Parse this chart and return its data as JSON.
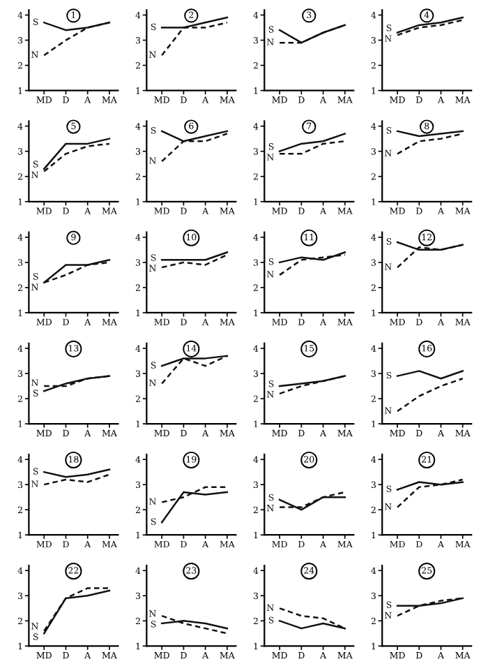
{
  "chart_data": [
    {
      "type": "line",
      "title": "1",
      "categories": [
        "MD",
        "D",
        "A",
        "MA"
      ],
      "ylim": [
        1,
        4.2
      ],
      "yticks": [
        1,
        2,
        3,
        4
      ],
      "series": [
        {
          "name": "S",
          "color": "#111111",
          "line_style": "solid",
          "values": [
            3.7,
            3.4,
            3.5,
            3.7
          ]
        },
        {
          "name": "N",
          "color": "#111111",
          "line_style": "dashed",
          "values": [
            2.4,
            3.0,
            3.5,
            3.7
          ]
        }
      ]
    },
    {
      "type": "line",
      "title": "2",
      "categories": [
        "MD",
        "D",
        "A",
        "MA"
      ],
      "ylim": [
        1,
        4.2
      ],
      "yticks": [
        1,
        2,
        3,
        4
      ],
      "series": [
        {
          "name": "S",
          "color": "#111111",
          "line_style": "solid",
          "values": [
            3.5,
            3.5,
            3.7,
            3.9
          ]
        },
        {
          "name": "N",
          "color": "#111111",
          "line_style": "dashed",
          "values": [
            2.4,
            3.5,
            3.5,
            3.7
          ]
        }
      ]
    },
    {
      "type": "line",
      "title": "3",
      "categories": [
        "MD",
        "D",
        "A",
        "MA"
      ],
      "ylim": [
        1,
        4.2
      ],
      "yticks": [
        1,
        2,
        3,
        4
      ],
      "series": [
        {
          "name": "S",
          "color": "#111111",
          "line_style": "solid",
          "values": [
            3.4,
            2.9,
            3.3,
            3.6
          ]
        },
        {
          "name": "N",
          "color": "#111111",
          "line_style": "dashed",
          "values": [
            2.9,
            2.9,
            3.3,
            3.6
          ]
        }
      ]
    },
    {
      "type": "line",
      "title": "4",
      "categories": [
        "MD",
        "D",
        "A",
        "MA"
      ],
      "ylim": [
        1,
        4.2
      ],
      "yticks": [
        1,
        2,
        3,
        4
      ],
      "series": [
        {
          "name": "S",
          "color": "#111111",
          "line_style": "solid",
          "values": [
            3.3,
            3.6,
            3.7,
            3.9
          ]
        },
        {
          "name": "N",
          "color": "#111111",
          "line_style": "dashed",
          "values": [
            3.2,
            3.5,
            3.6,
            3.8
          ]
        }
      ]
    },
    {
      "type": "line",
      "title": "5",
      "categories": [
        "MD",
        "D",
        "A",
        "MA"
      ],
      "ylim": [
        1,
        4.2
      ],
      "yticks": [
        1,
        2,
        3,
        4
      ],
      "series": [
        {
          "name": "S",
          "color": "#111111",
          "line_style": "solid",
          "values": [
            2.3,
            3.3,
            3.3,
            3.5
          ]
        },
        {
          "name": "N",
          "color": "#111111",
          "line_style": "dashed",
          "values": [
            2.2,
            2.9,
            3.2,
            3.3
          ]
        }
      ]
    },
    {
      "type": "line",
      "title": "6",
      "categories": [
        "MD",
        "D",
        "A",
        "MA"
      ],
      "ylim": [
        1,
        4.2
      ],
      "yticks": [
        1,
        2,
        3,
        4
      ],
      "series": [
        {
          "name": "S",
          "color": "#111111",
          "line_style": "solid",
          "values": [
            3.8,
            3.4,
            3.6,
            3.8
          ]
        },
        {
          "name": "N",
          "color": "#111111",
          "line_style": "dashed",
          "values": [
            2.6,
            3.4,
            3.4,
            3.7
          ]
        }
      ]
    },
    {
      "type": "line",
      "title": "7",
      "categories": [
        "MD",
        "D",
        "A",
        "MA"
      ],
      "ylim": [
        1,
        4.2
      ],
      "yticks": [
        1,
        2,
        3,
        4
      ],
      "series": [
        {
          "name": "S",
          "color": "#111111",
          "line_style": "solid",
          "values": [
            3.0,
            3.3,
            3.4,
            3.7
          ]
        },
        {
          "name": "N",
          "color": "#111111",
          "line_style": "dashed",
          "values": [
            2.9,
            2.9,
            3.3,
            3.4
          ]
        }
      ]
    },
    {
      "type": "line",
      "title": "8",
      "categories": [
        "MD",
        "D",
        "A",
        "MA"
      ],
      "ylim": [
        1,
        4.2
      ],
      "yticks": [
        1,
        2,
        3,
        4
      ],
      "series": [
        {
          "name": "S",
          "color": "#111111",
          "line_style": "solid",
          "values": [
            3.8,
            3.6,
            3.7,
            3.8
          ]
        },
        {
          "name": "N",
          "color": "#111111",
          "line_style": "dashed",
          "values": [
            2.9,
            3.4,
            3.5,
            3.7
          ]
        }
      ]
    },
    {
      "type": "line",
      "title": "9",
      "categories": [
        "MD",
        "D",
        "A",
        "MA"
      ],
      "ylim": [
        1,
        4.2
      ],
      "yticks": [
        1,
        2,
        3,
        4
      ],
      "series": [
        {
          "name": "S",
          "color": "#111111",
          "line_style": "solid",
          "values": [
            2.2,
            2.9,
            2.9,
            3.1
          ]
        },
        {
          "name": "N",
          "color": "#111111",
          "line_style": "dashed",
          "values": [
            2.2,
            2.5,
            2.9,
            3.0
          ]
        }
      ]
    },
    {
      "type": "line",
      "title": "10",
      "categories": [
        "MD",
        "D",
        "A",
        "MA"
      ],
      "ylim": [
        1,
        4.2
      ],
      "yticks": [
        1,
        2,
        3,
        4
      ],
      "series": [
        {
          "name": "S",
          "color": "#111111",
          "line_style": "solid",
          "values": [
            3.1,
            3.1,
            3.1,
            3.4
          ]
        },
        {
          "name": "N",
          "color": "#111111",
          "line_style": "dashed",
          "values": [
            2.8,
            3.0,
            2.9,
            3.3
          ]
        }
      ]
    },
    {
      "type": "line",
      "title": "11",
      "categories": [
        "MD",
        "D",
        "A",
        "MA"
      ],
      "ylim": [
        1,
        4.2
      ],
      "yticks": [
        1,
        2,
        3,
        4
      ],
      "series": [
        {
          "name": "S",
          "color": "#111111",
          "line_style": "solid",
          "values": [
            3.0,
            3.2,
            3.1,
            3.4
          ]
        },
        {
          "name": "N",
          "color": "#111111",
          "line_style": "dashed",
          "values": [
            2.5,
            3.1,
            3.2,
            3.3
          ]
        }
      ]
    },
    {
      "type": "line",
      "title": "12",
      "categories": [
        "MD",
        "D",
        "A",
        "MA"
      ],
      "ylim": [
        1,
        4.2
      ],
      "yticks": [
        1,
        2,
        3,
        4
      ],
      "series": [
        {
          "name": "S",
          "color": "#111111",
          "line_style": "solid",
          "values": [
            3.8,
            3.5,
            3.5,
            3.7
          ]
        },
        {
          "name": "N",
          "color": "#111111",
          "line_style": "dashed",
          "values": [
            2.8,
            3.6,
            3.5,
            3.7
          ]
        }
      ]
    },
    {
      "type": "line",
      "title": "13",
      "categories": [
        "MD",
        "D",
        "A",
        "MA"
      ],
      "ylim": [
        1,
        4.2
      ],
      "yticks": [
        1,
        2,
        3,
        4
      ],
      "series": [
        {
          "name": "S",
          "color": "#111111",
          "line_style": "solid",
          "values": [
            2.3,
            2.6,
            2.8,
            2.9
          ]
        },
        {
          "name": "N",
          "color": "#111111",
          "line_style": "dashed",
          "values": [
            2.5,
            2.5,
            2.8,
            2.9
          ]
        }
      ]
    },
    {
      "type": "line",
      "title": "14",
      "categories": [
        "MD",
        "D",
        "A",
        "MA"
      ],
      "ylim": [
        1,
        4.2
      ],
      "yticks": [
        1,
        2,
        3,
        4
      ],
      "series": [
        {
          "name": "S",
          "color": "#111111",
          "line_style": "solid",
          "values": [
            3.3,
            3.6,
            3.6,
            3.7
          ]
        },
        {
          "name": "N",
          "color": "#111111",
          "line_style": "dashed",
          "values": [
            2.6,
            3.6,
            3.3,
            3.7
          ]
        }
      ]
    },
    {
      "type": "line",
      "title": "15",
      "categories": [
        "MD",
        "D",
        "A",
        "MA"
      ],
      "ylim": [
        1,
        4.2
      ],
      "yticks": [
        1,
        2,
        3,
        4
      ],
      "series": [
        {
          "name": "S",
          "color": "#111111",
          "line_style": "solid",
          "values": [
            2.5,
            2.6,
            2.7,
            2.9
          ]
        },
        {
          "name": "N",
          "color": "#111111",
          "line_style": "dashed",
          "values": [
            2.2,
            2.5,
            2.7,
            2.9
          ]
        }
      ]
    },
    {
      "type": "line",
      "title": "16",
      "categories": [
        "MD",
        "D",
        "A",
        "MA"
      ],
      "ylim": [
        1,
        4.2
      ],
      "yticks": [
        1,
        2,
        3,
        4
      ],
      "series": [
        {
          "name": "S",
          "color": "#111111",
          "line_style": "solid",
          "values": [
            2.9,
            3.1,
            2.8,
            3.1
          ]
        },
        {
          "name": "N",
          "color": "#111111",
          "line_style": "dashed",
          "values": [
            1.5,
            2.1,
            2.5,
            2.8
          ]
        }
      ]
    },
    {
      "type": "line",
      "title": "18",
      "categories": [
        "MD",
        "D",
        "A",
        "MA"
      ],
      "ylim": [
        1,
        4.2
      ],
      "yticks": [
        1,
        2,
        3,
        4
      ],
      "series": [
        {
          "name": "S",
          "color": "#111111",
          "line_style": "solid",
          "values": [
            3.5,
            3.3,
            3.4,
            3.6
          ]
        },
        {
          "name": "N",
          "color": "#111111",
          "line_style": "dashed",
          "values": [
            3.0,
            3.2,
            3.1,
            3.4
          ]
        }
      ]
    },
    {
      "type": "line",
      "title": "19",
      "categories": [
        "MD",
        "D",
        "A",
        "MA"
      ],
      "ylim": [
        1,
        4.2
      ],
      "yticks": [
        1,
        2,
        3,
        4
      ],
      "series": [
        {
          "name": "S",
          "color": "#111111",
          "line_style": "solid",
          "values": [
            1.5,
            2.7,
            2.6,
            2.7
          ]
        },
        {
          "name": "N",
          "color": "#111111",
          "line_style": "dashed",
          "values": [
            2.3,
            2.5,
            2.9,
            2.9
          ]
        }
      ]
    },
    {
      "type": "line",
      "title": "20",
      "categories": [
        "MD",
        "D",
        "A",
        "MA"
      ],
      "ylim": [
        1,
        4.2
      ],
      "yticks": [
        1,
        2,
        3,
        4
      ],
      "series": [
        {
          "name": "S",
          "color": "#111111",
          "line_style": "solid",
          "values": [
            2.4,
            2.0,
            2.5,
            2.5
          ]
        },
        {
          "name": "N",
          "color": "#111111",
          "line_style": "dashed",
          "values": [
            2.1,
            2.1,
            2.5,
            2.7
          ]
        }
      ]
    },
    {
      "type": "line",
      "title": "21",
      "categories": [
        "MD",
        "D",
        "A",
        "MA"
      ],
      "ylim": [
        1,
        4.2
      ],
      "yticks": [
        1,
        2,
        3,
        4
      ],
      "series": [
        {
          "name": "S",
          "color": "#111111",
          "line_style": "solid",
          "values": [
            2.8,
            3.1,
            3.0,
            3.1
          ]
        },
        {
          "name": "N",
          "color": "#111111",
          "line_style": "dashed",
          "values": [
            2.1,
            2.9,
            3.0,
            3.2
          ]
        }
      ]
    },
    {
      "type": "line",
      "title": "22",
      "categories": [
        "MD",
        "D",
        "A",
        "MA"
      ],
      "ylim": [
        1,
        4.2
      ],
      "yticks": [
        1,
        2,
        3,
        4
      ],
      "series": [
        {
          "name": "S",
          "color": "#111111",
          "line_style": "solid",
          "values": [
            1.5,
            2.9,
            3.0,
            3.2
          ]
        },
        {
          "name": "N",
          "color": "#111111",
          "line_style": "dashed",
          "values": [
            1.6,
            2.9,
            3.3,
            3.3
          ]
        }
      ]
    },
    {
      "type": "line",
      "title": "23",
      "categories": [
        "MD",
        "D",
        "A",
        "MA"
      ],
      "ylim": [
        1,
        4.2
      ],
      "yticks": [
        1,
        2,
        3,
        4
      ],
      "series": [
        {
          "name": "S",
          "color": "#111111",
          "line_style": "solid",
          "values": [
            1.9,
            2.0,
            1.9,
            1.7
          ]
        },
        {
          "name": "N",
          "color": "#111111",
          "line_style": "dashed",
          "values": [
            2.2,
            1.9,
            1.7,
            1.5
          ]
        }
      ]
    },
    {
      "type": "line",
      "title": "24",
      "categories": [
        "MD",
        "D",
        "A",
        "MA"
      ],
      "ylim": [
        1,
        4.2
      ],
      "yticks": [
        1,
        2,
        3,
        4
      ],
      "series": [
        {
          "name": "S",
          "color": "#111111",
          "line_style": "solid",
          "values": [
            2.0,
            1.7,
            1.9,
            1.7
          ]
        },
        {
          "name": "N",
          "color": "#111111",
          "line_style": "dashed",
          "values": [
            2.5,
            2.2,
            2.1,
            1.7
          ]
        }
      ]
    },
    {
      "type": "line",
      "title": "25",
      "categories": [
        "MD",
        "D",
        "A",
        "MA"
      ],
      "ylim": [
        1,
        4.2
      ],
      "yticks": [
        1,
        2,
        3,
        4
      ],
      "series": [
        {
          "name": "S",
          "color": "#111111",
          "line_style": "solid",
          "values": [
            2.6,
            2.6,
            2.7,
            2.9
          ]
        },
        {
          "name": "N",
          "color": "#111111",
          "line_style": "dashed",
          "values": [
            2.2,
            2.6,
            2.8,
            2.9
          ]
        }
      ]
    }
  ]
}
